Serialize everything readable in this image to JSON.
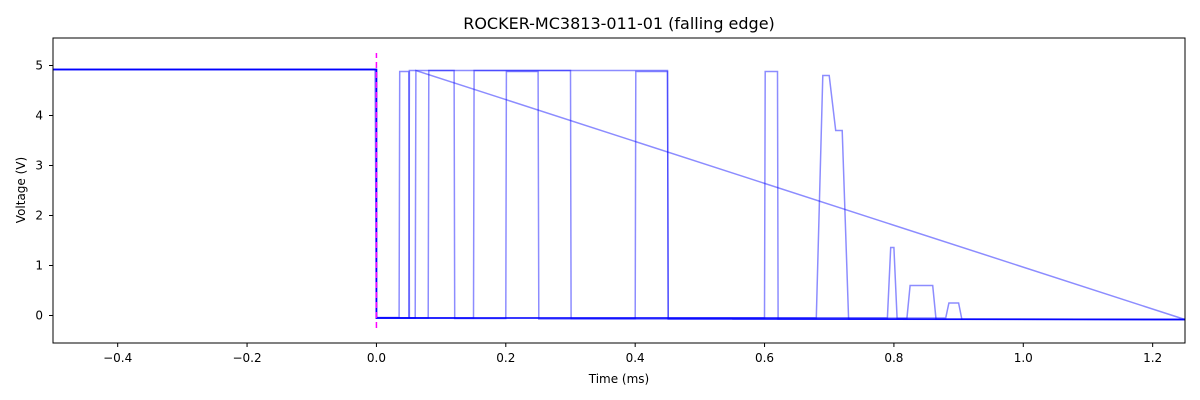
{
  "chart_data": {
    "type": "line",
    "title": "ROCKER-MC3813-011-01 (falling edge)",
    "xlabel": "Time (ms)",
    "ylabel": "Voltage (V)",
    "xlim": [
      -0.5,
      1.25
    ],
    "ylim": [
      -0.55,
      5.55
    ],
    "xticks": [
      -0.4,
      -0.2,
      0.0,
      0.2,
      0.4,
      0.6,
      0.8,
      1.0,
      1.2
    ],
    "xtick_labels": [
      "−0.4",
      "−0.2",
      "0.0",
      "0.2",
      "0.4",
      "0.6",
      "0.8",
      "1.0",
      "1.2"
    ],
    "yticks": [
      0,
      1,
      2,
      3,
      4,
      5
    ],
    "ytick_labels": [
      "0",
      "1",
      "2",
      "3",
      "4",
      "5"
    ],
    "grid": false,
    "series_color": "#0000ff",
    "marker": {
      "x": 0.0,
      "color": "#ff00ff",
      "style": "dashed",
      "y_range": [
        -0.25,
        5.25
      ]
    },
    "series": [
      {
        "x": [
          -0.5,
          -0.002,
          0.0,
          0.035,
          0.036,
          0.05,
          0.051,
          0.06,
          0.061,
          1.25
        ],
        "y": [
          4.92,
          4.92,
          -0.04,
          -0.04,
          4.88,
          4.88,
          -0.05,
          -0.05,
          4.9,
          -0.08
        ]
      },
      {
        "x": [
          -0.5,
          0.0,
          0.0,
          0.08,
          0.081,
          0.12,
          0.121,
          0.2,
          0.201,
          0.25,
          0.251,
          1.25
        ],
        "y": [
          4.92,
          4.92,
          -0.05,
          -0.05,
          4.9,
          4.9,
          -0.06,
          -0.06,
          4.88,
          4.88,
          -0.07,
          -0.08
        ]
      },
      {
        "x": [
          -0.5,
          0.0,
          0.0,
          0.15,
          0.151,
          0.3,
          0.301,
          0.4,
          0.401,
          0.45,
          0.451,
          1.25
        ],
        "y": [
          4.92,
          4.92,
          -0.05,
          -0.05,
          4.9,
          4.9,
          -0.06,
          -0.06,
          4.88,
          4.88,
          -0.07,
          -0.08
        ]
      },
      {
        "x": [
          -0.5,
          0.0,
          0.0,
          0.05,
          0.051,
          0.45,
          0.451,
          0.55,
          0.551,
          1.25
        ],
        "y": [
          4.92,
          4.92,
          -0.05,
          -0.05,
          4.9,
          4.9,
          -0.06,
          -0.06,
          -0.07,
          -0.08
        ]
      },
      {
        "x": [
          -0.5,
          0.0,
          0.0,
          0.6,
          0.601,
          0.62,
          0.621,
          1.25
        ],
        "y": [
          4.92,
          4.92,
          -0.05,
          -0.05,
          4.88,
          4.88,
          -0.07,
          -0.08
        ]
      },
      {
        "x": [
          -0.5,
          0.0,
          0.0,
          0.68,
          0.69,
          0.7,
          0.71,
          0.72,
          0.73,
          1.25
        ],
        "y": [
          4.92,
          4.92,
          -0.05,
          -0.05,
          4.8,
          4.8,
          3.7,
          3.7,
          -0.07,
          -0.08
        ]
      },
      {
        "x": [
          -0.5,
          0.0,
          0.0,
          0.79,
          0.795,
          0.8,
          0.805,
          0.82,
          0.825,
          0.86,
          0.865,
          1.25
        ],
        "y": [
          4.92,
          4.92,
          -0.05,
          -0.05,
          1.36,
          1.36,
          -0.06,
          -0.06,
          0.6,
          0.6,
          -0.07,
          -0.08
        ]
      },
      {
        "x": [
          -0.5,
          0.0,
          0.0,
          0.88,
          0.885,
          0.9,
          0.905,
          1.25
        ],
        "y": [
          4.92,
          4.92,
          -0.05,
          -0.05,
          0.25,
          0.25,
          -0.07,
          -0.08
        ]
      }
    ]
  }
}
